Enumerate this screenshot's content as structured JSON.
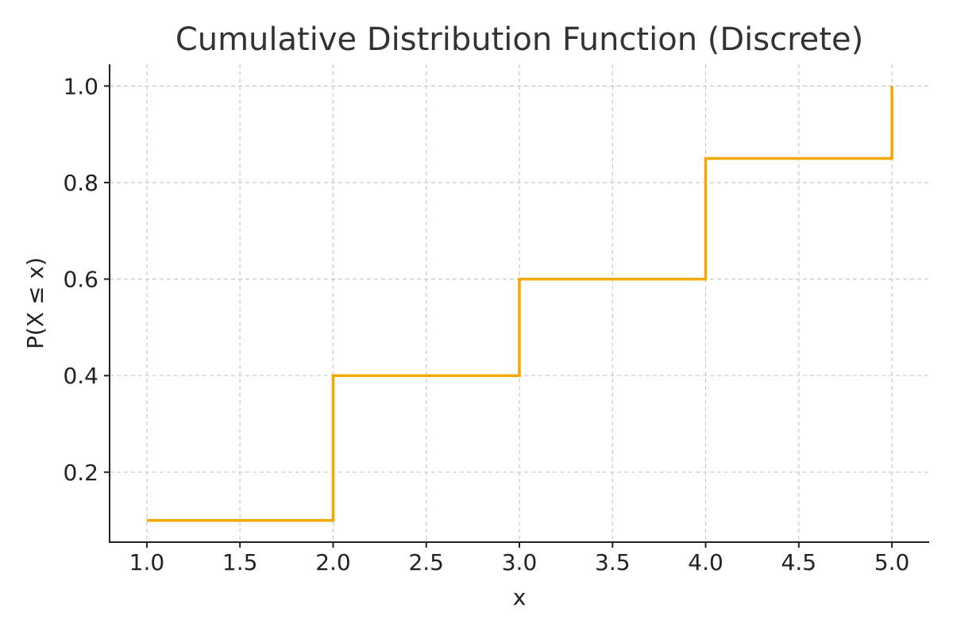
{
  "chart_data": {
    "type": "line",
    "step": "post",
    "title": "Cumulative Distribution Function (Discrete)",
    "xlabel": "x",
    "ylabel": "P(X ≤ x)",
    "x": [
      1,
      2,
      3,
      4,
      5
    ],
    "y": [
      0.1,
      0.4,
      0.6,
      0.85,
      1.0
    ],
    "xlim": [
      0.8,
      5.2
    ],
    "ylim": [
      0.055,
      1.045
    ],
    "xticks": [
      1.0,
      1.5,
      2.0,
      2.5,
      3.0,
      3.5,
      4.0,
      4.5,
      5.0
    ],
    "xtick_labels": [
      "1.0",
      "1.5",
      "2.0",
      "2.5",
      "3.0",
      "3.5",
      "4.0",
      "4.5",
      "5.0"
    ],
    "yticks": [
      0.2,
      0.4,
      0.6,
      0.8,
      1.0
    ],
    "ytick_labels": [
      "0.2",
      "0.4",
      "0.6",
      "0.8",
      "1.0"
    ],
    "grid": true,
    "grid_style": "dashed",
    "line_color": "#f5a800",
    "spines": "left-bottom"
  }
}
